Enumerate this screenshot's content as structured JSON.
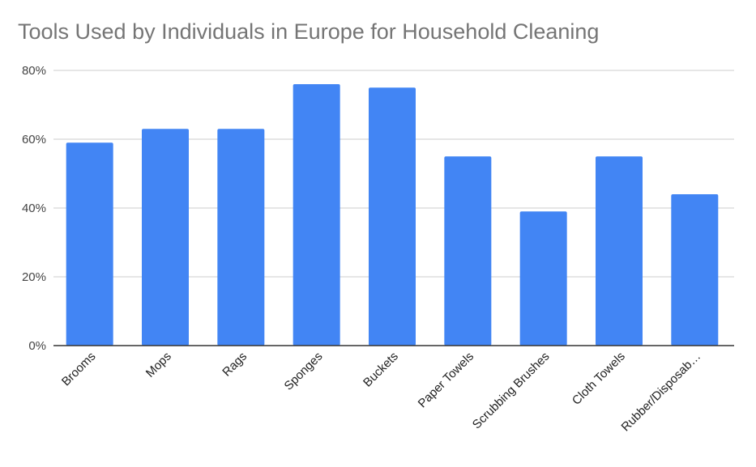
{
  "chart_data": {
    "type": "bar",
    "title": "Tools Used by Individuals in Europe for Household Cleaning",
    "xlabel": "",
    "ylabel": "",
    "categories": [
      "Brooms",
      "Mops",
      "Rags",
      "Sponges",
      "Buckets",
      "Paper Towels",
      "Scrubbing Brushes",
      "Cloth Towels",
      "Rubber/Disposab…"
    ],
    "values": [
      59,
      63,
      63,
      76,
      75,
      55,
      39,
      55,
      44
    ],
    "ylim": [
      0,
      80
    ],
    "yticks": [
      0,
      20,
      40,
      60,
      80
    ],
    "ytick_labels": [
      "0%",
      "20%",
      "40%",
      "60%",
      "80%"
    ],
    "grid": true,
    "legend": "none",
    "colors": {
      "bar": "#4285f4",
      "grid": "#cccccc",
      "axis": "#333333",
      "title": "#757575"
    }
  }
}
